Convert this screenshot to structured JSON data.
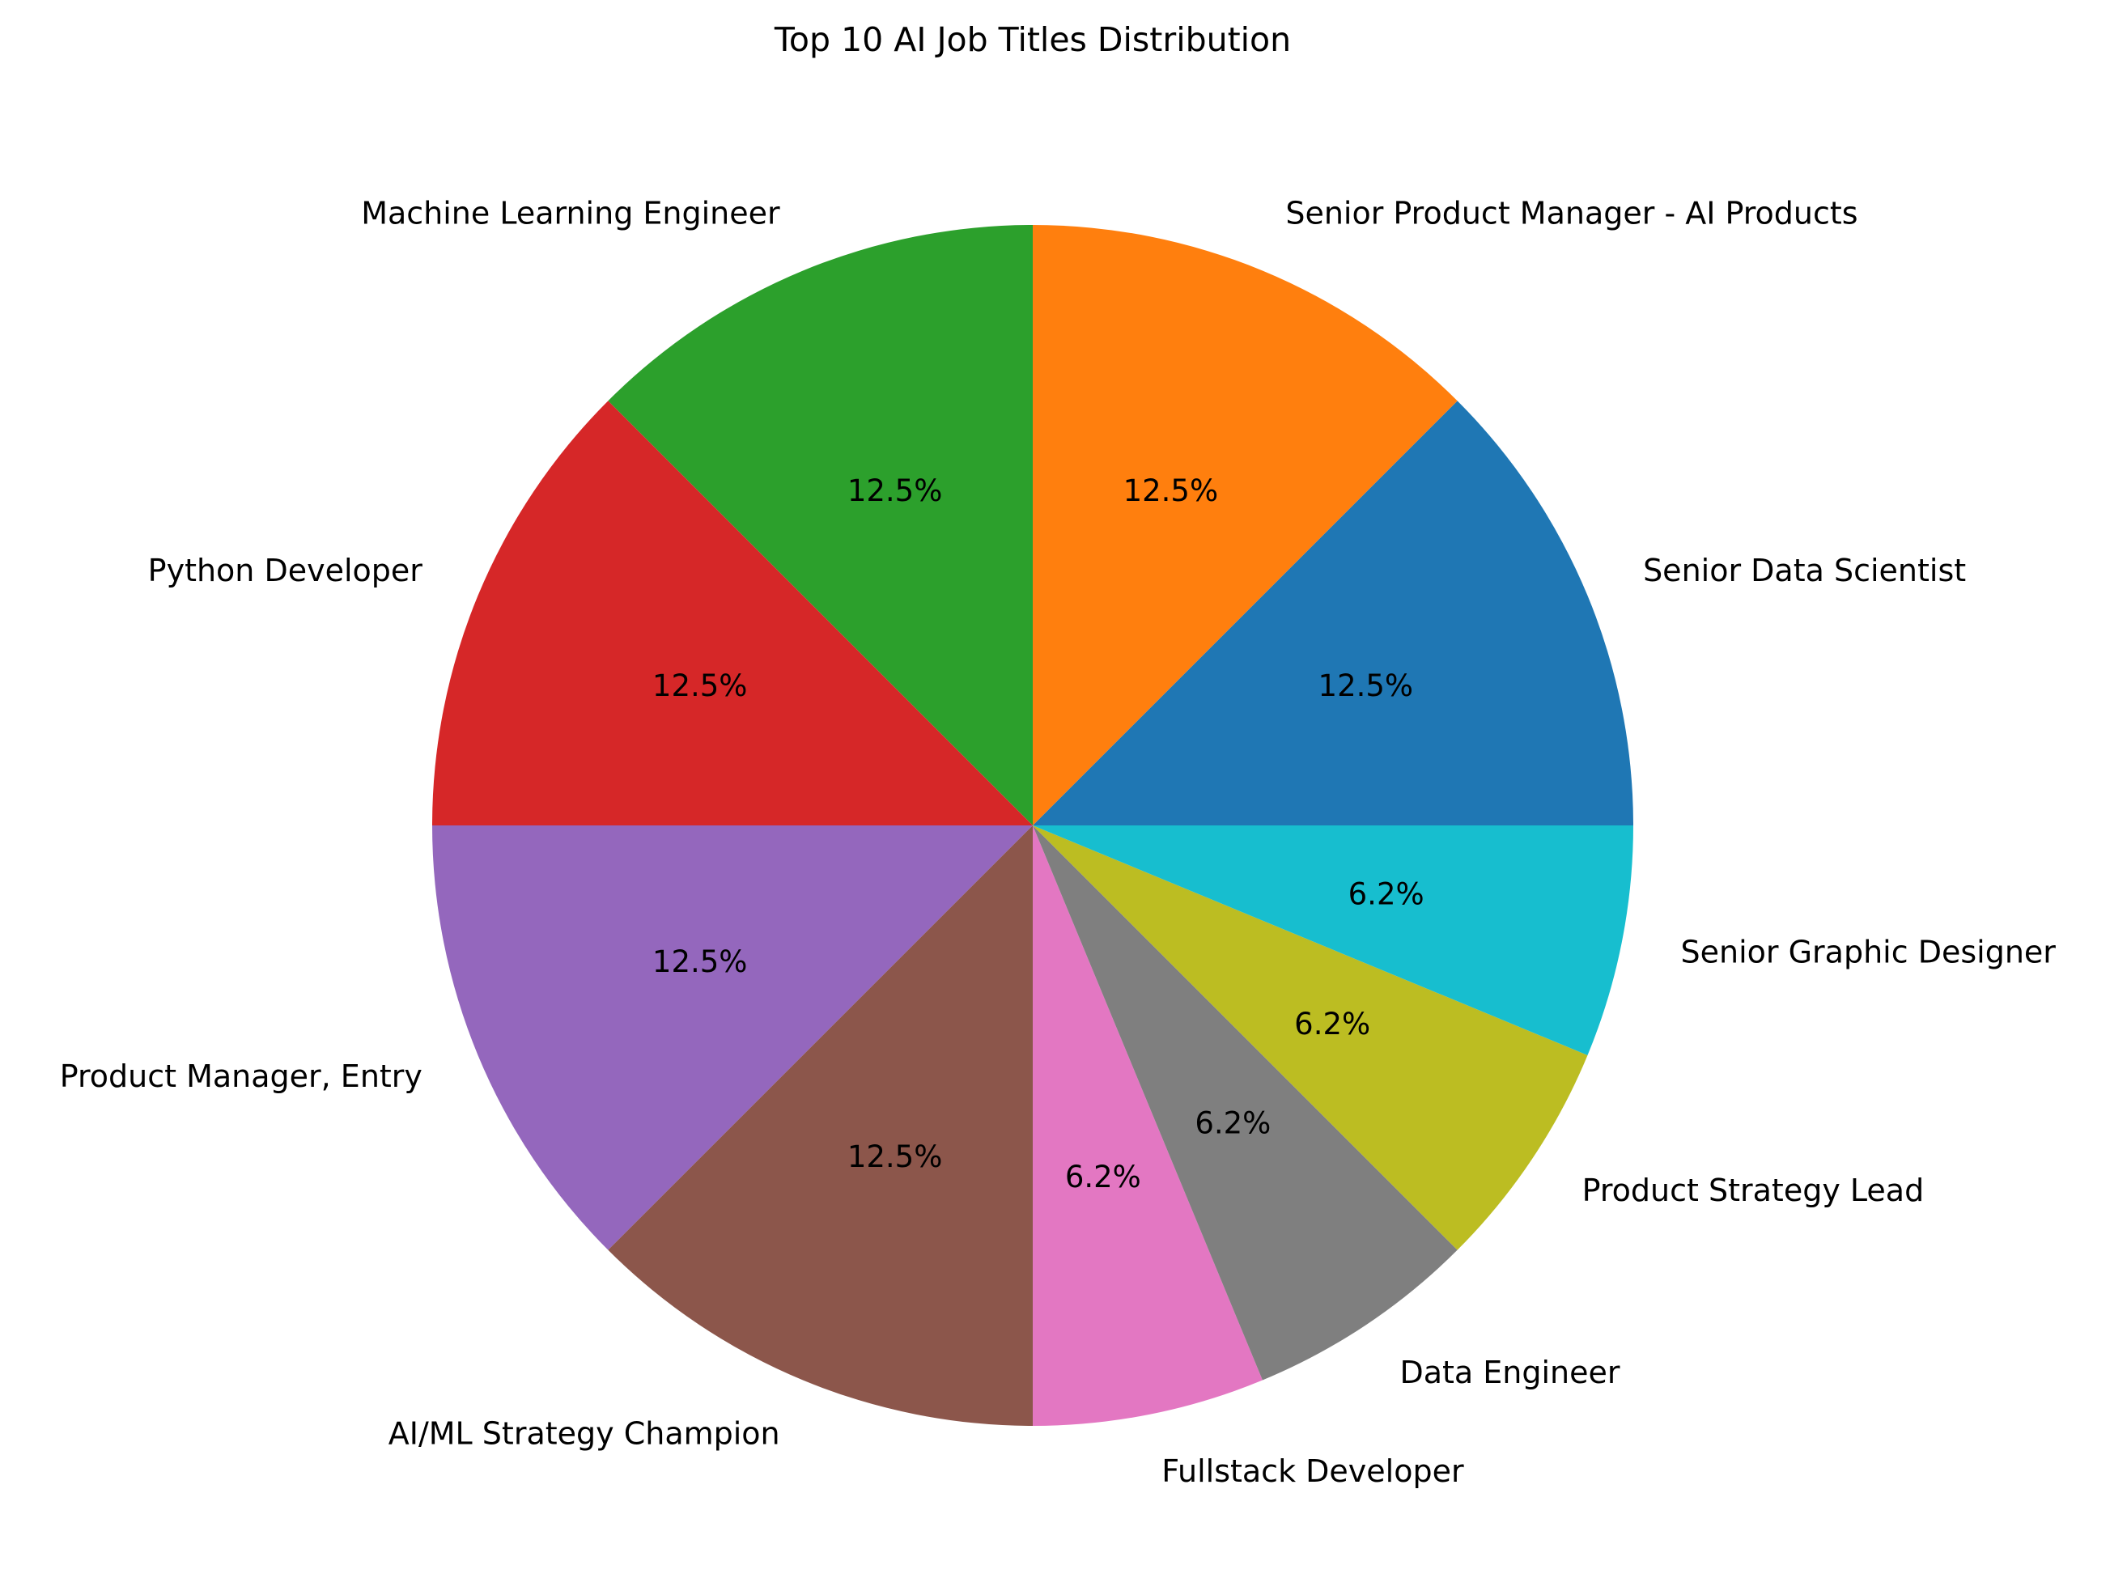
{
  "chart_data": {
    "type": "pie",
    "title": "Top 10 AI Job Titles Distribution",
    "start_angle_deg": 0,
    "direction": "counterclockwise",
    "autopct_format": "%.1f%%",
    "slices": [
      {
        "label": "Senior Data Scientist",
        "value": 12.5,
        "pct_label": "12.5%",
        "color": "#1f77b4"
      },
      {
        "label": "Senior Product Manager - AI Products",
        "value": 12.5,
        "pct_label": "12.5%",
        "color": "#ff7f0e"
      },
      {
        "label": "Machine Learning Engineer",
        "value": 12.5,
        "pct_label": "12.5%",
        "color": "#2ca02c"
      },
      {
        "label": "Python Developer",
        "value": 12.5,
        "pct_label": "12.5%",
        "color": "#d62728"
      },
      {
        "label": "Product Manager, Entry",
        "value": 12.5,
        "pct_label": "12.5%",
        "color": "#9467bd"
      },
      {
        "label": "AI/ML Strategy Champion",
        "value": 12.5,
        "pct_label": "12.5%",
        "color": "#8c564b"
      },
      {
        "label": "Fullstack Developer",
        "value": 6.25,
        "pct_label": "6.2%",
        "color": "#e377c2"
      },
      {
        "label": "Data Engineer",
        "value": 6.25,
        "pct_label": "6.2%",
        "color": "#7f7f7f"
      },
      {
        "label": "Product Strategy Lead",
        "value": 6.25,
        "pct_label": "6.2%",
        "color": "#bcbd22"
      },
      {
        "label": "Senior Graphic Designer",
        "value": 6.25,
        "pct_label": "6.2%",
        "color": "#17becf"
      }
    ]
  }
}
